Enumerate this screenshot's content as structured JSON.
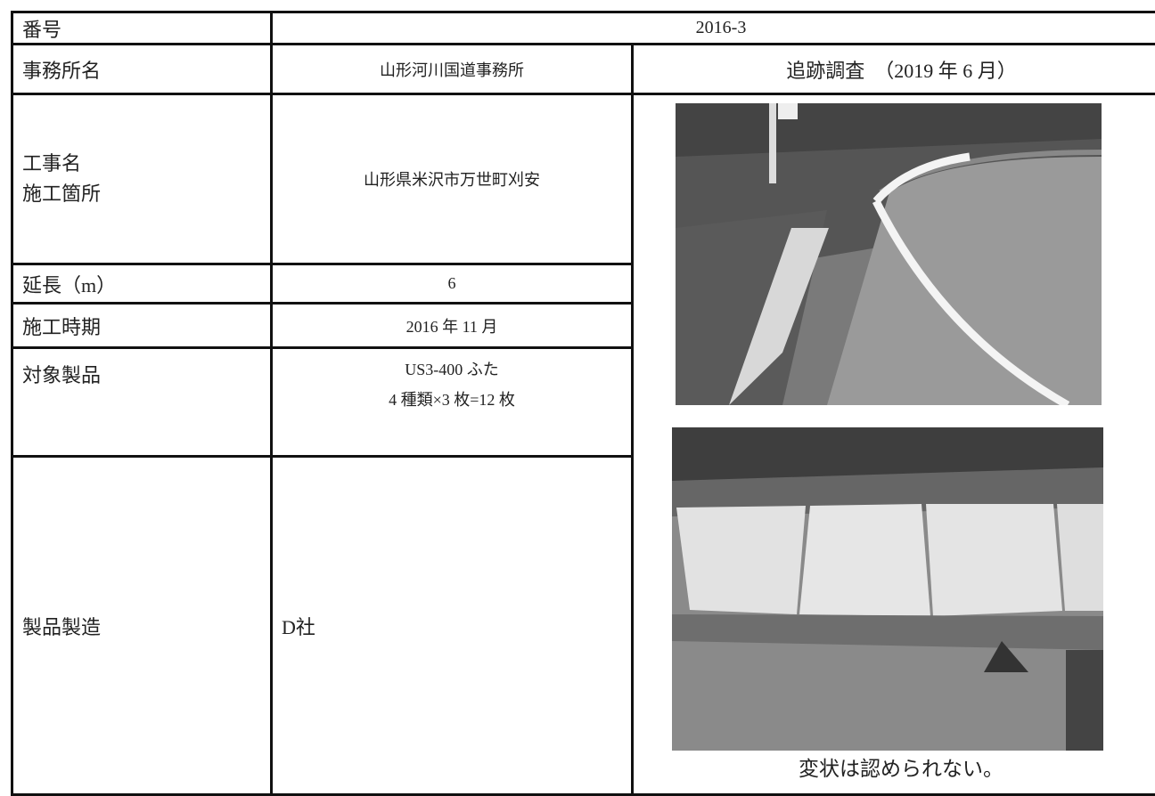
{
  "number": {
    "label": "番号",
    "value": "2016-3"
  },
  "office": {
    "label": "事務所名",
    "value": "山形河川国道事務所"
  },
  "survey": {
    "title": "追跡調査　（2019 年 6 月）",
    "caption": "変状は認められない。"
  },
  "rows": [
    {
      "labels": [
        "工事名",
        "施工箇所"
      ],
      "values": [
        "山形県米沢市万世町刈安"
      ]
    },
    {
      "labels": [
        "延長（m）"
      ],
      "values": [
        "6"
      ]
    },
    {
      "labels": [
        "施工時期"
      ],
      "values": [
        "2016 年 11 月"
      ]
    },
    {
      "labels": [
        "対象製品"
      ],
      "values": [
        "US3-400 ふた",
        "4 種類×3 枚=12 枚"
      ]
    },
    {
      "labels": [
        "製品製造"
      ],
      "values": [
        "D社"
      ]
    }
  ]
}
